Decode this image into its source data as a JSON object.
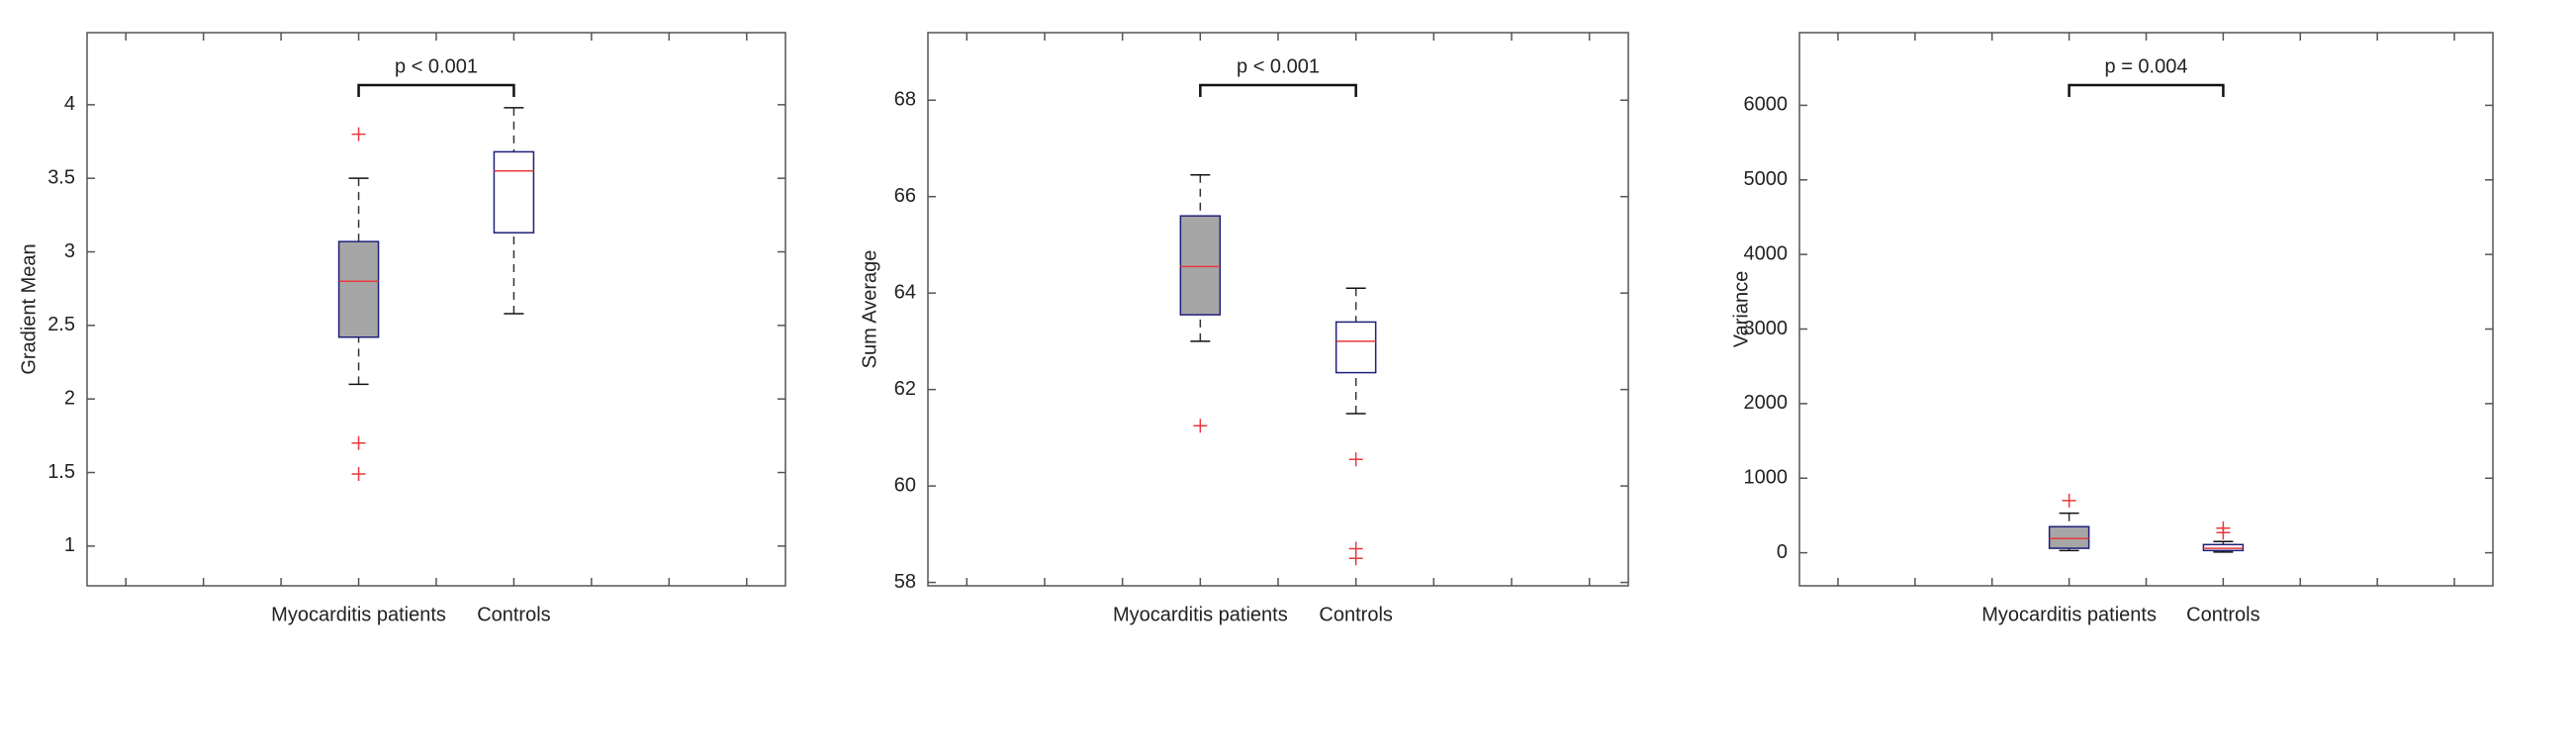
{
  "chart_data": [
    {
      "type": "box",
      "ylabel": "Gradient Mean",
      "categories": [
        null,
        null,
        null,
        "Myocarditis patients",
        null,
        "Controls",
        null,
        null,
        null
      ],
      "min": [
        null,
        null,
        null,
        2.1,
        null,
        2.58,
        null,
        null,
        null
      ],
      "q1": [
        null,
        null,
        null,
        2.42,
        null,
        3.13,
        null,
        null,
        null
      ],
      "median": [
        null,
        null,
        null,
        2.8,
        null,
        3.55,
        null,
        null,
        null
      ],
      "q3": [
        null,
        null,
        null,
        3.07,
        null,
        3.68,
        null,
        null,
        null
      ],
      "max": [
        null,
        null,
        null,
        3.5,
        null,
        3.98,
        null,
        null,
        null
      ],
      "outliers": [
        null,
        null,
        null,
        [
          3.8,
          1.7,
          1.49
        ],
        null,
        null,
        null,
        null,
        null
      ],
      "colors": [
        null,
        null,
        null,
        "#a6a6a6",
        null,
        "#ffffff",
        null,
        null,
        null
      ],
      "ylim": [
        0.73,
        4.49
      ],
      "yticks": [
        1,
        1.5,
        2,
        2.5,
        3,
        3.5,
        4
      ],
      "annotation": "p < 0.001"
    },
    {
      "type": "box",
      "ylabel": "Sum Average",
      "categories": [
        null,
        null,
        null,
        "Myocarditis patients",
        null,
        "Controls",
        null,
        null,
        null
      ],
      "min": [
        null,
        null,
        null,
        63.0,
        null,
        61.5,
        null,
        null,
        null
      ],
      "q1": [
        null,
        null,
        null,
        63.55,
        null,
        62.35,
        null,
        null,
        null
      ],
      "median": [
        null,
        null,
        null,
        64.55,
        null,
        63.0,
        null,
        null,
        null
      ],
      "q3": [
        null,
        null,
        null,
        65.6,
        null,
        63.4,
        null,
        null,
        null
      ],
      "max": [
        null,
        null,
        null,
        66.45,
        null,
        64.1,
        null,
        null,
        null
      ],
      "outliers": [
        null,
        null,
        null,
        [
          61.25
        ],
        null,
        [
          60.55,
          58.5,
          58.7
        ],
        null,
        null,
        null
      ],
      "colors": [
        null,
        null,
        null,
        "#a6a6a6",
        null,
        "#ffffff",
        null,
        null,
        null
      ],
      "ylim": [
        57.93,
        69.4
      ],
      "yticks": [
        58,
        60,
        62,
        64,
        66,
        68
      ],
      "annotation": "p < 0.001"
    },
    {
      "type": "box",
      "ylabel": "Variance",
      "categories": [
        null,
        null,
        null,
        "Myocarditis patients",
        null,
        "Controls",
        null,
        null,
        null
      ],
      "min": [
        null,
        null,
        null,
        30,
        null,
        10,
        null,
        null,
        null
      ],
      "q1": [
        null,
        null,
        null,
        60,
        null,
        30,
        null,
        null,
        null
      ],
      "median": [
        null,
        null,
        null,
        190,
        null,
        60,
        null,
        null,
        null
      ],
      "q3": [
        null,
        null,
        null,
        350,
        null,
        110,
        null,
        null,
        null
      ],
      "max": [
        null,
        null,
        null,
        530,
        null,
        150,
        null,
        null,
        null
      ],
      "outliers": [
        null,
        null,
        null,
        [
          700
        ],
        null,
        [
          330,
          270
        ],
        null,
        null,
        null
      ],
      "colors": [
        null,
        null,
        null,
        "#a6a6a6",
        null,
        "#ffffff",
        null,
        null,
        null
      ],
      "ylim": [
        -443,
        6974
      ],
      "yticks": [
        0,
        1000,
        2000,
        3000,
        4000,
        5000,
        6000
      ],
      "annotation": "p = 0.004"
    }
  ]
}
